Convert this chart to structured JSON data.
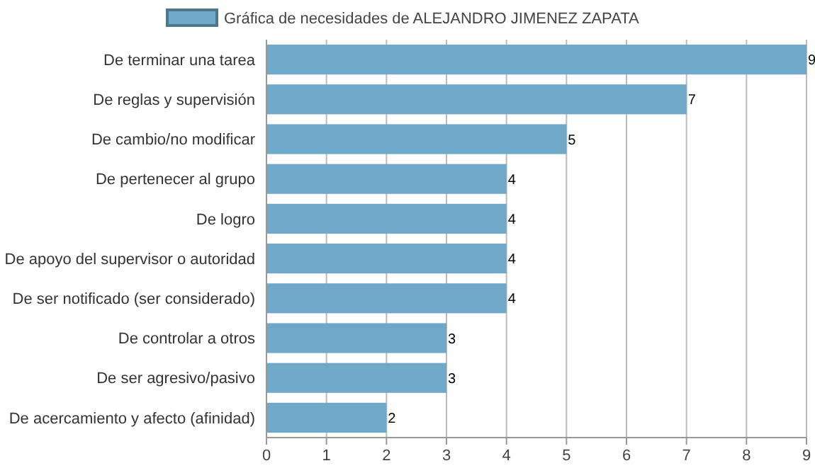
{
  "chart_data": {
    "type": "bar",
    "orientation": "horizontal",
    "categories": [
      "De terminar una tarea",
      "De reglas y supervisión",
      "De cambio/no modificar",
      "De pertenecer al grupo",
      "De logro",
      "De apoyo del supervisor o autoridad",
      "De ser notificado (ser considerado)",
      "De controlar a otros",
      "De ser agresivo/pasivo",
      "De acercamiento y afecto (afinidad)"
    ],
    "series": [
      {
        "name": "Gráfica de necesidades de ALEJANDRO JIMENEZ ZAPATA",
        "color": "#6fa8c8",
        "values": [
          9,
          7,
          5,
          4,
          4,
          4,
          4,
          3,
          3,
          2
        ]
      }
    ],
    "xlim": [
      0,
      9
    ],
    "xticks": [
      0,
      1,
      2,
      3,
      4,
      5,
      6,
      7,
      8,
      9
    ],
    "grid": "x",
    "legend": "top",
    "data_labels": true
  }
}
